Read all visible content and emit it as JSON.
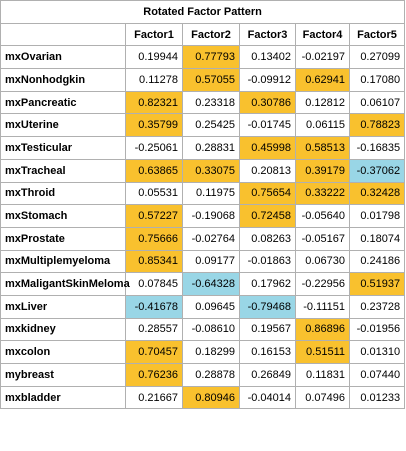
{
  "table": {
    "title": "Rotated Factor Pattern",
    "columns": [
      "Factor1",
      "Factor2",
      "Factor3",
      "Factor4",
      "Factor5"
    ],
    "highlight_colors": {
      "positive": "#f9c12e",
      "negative": "#99d6e6"
    },
    "rows": [
      {
        "label": "mxOvarian",
        "values": [
          "0.19944",
          "0.77793",
          "0.13402",
          "-0.02197",
          "0.27099"
        ],
        "hl": [
          "",
          "pos",
          "",
          "",
          ""
        ]
      },
      {
        "label": "mxNonhodgkin",
        "values": [
          "0.11278",
          "0.57055",
          "-0.09912",
          "0.62941",
          "0.17080"
        ],
        "hl": [
          "",
          "pos",
          "",
          "pos",
          ""
        ]
      },
      {
        "label": "mxPancreatic",
        "values": [
          "0.82321",
          "0.23318",
          "0.30786",
          "0.12812",
          "0.06107"
        ],
        "hl": [
          "pos",
          "",
          "pos",
          "",
          ""
        ]
      },
      {
        "label": "mxUterine",
        "values": [
          "0.35799",
          "0.25425",
          "-0.01745",
          "0.06115",
          "0.78823"
        ],
        "hl": [
          "pos",
          "",
          "",
          "",
          "pos"
        ]
      },
      {
        "label": "mxTesticular",
        "values": [
          "-0.25061",
          "0.28831",
          "0.45998",
          "0.58513",
          "-0.16835"
        ],
        "hl": [
          "",
          "",
          "pos",
          "pos",
          ""
        ]
      },
      {
        "label": "mxTracheal",
        "values": [
          "0.63865",
          "0.33075",
          "0.20813",
          "0.39179",
          "-0.37062"
        ],
        "hl": [
          "pos",
          "pos",
          "",
          "pos",
          "neg"
        ]
      },
      {
        "label": "mxThroid",
        "values": [
          "0.05531",
          "0.11975",
          "0.75654",
          "0.33222",
          "0.32428"
        ],
        "hl": [
          "",
          "",
          "pos",
          "pos",
          "pos"
        ]
      },
      {
        "label": "mxStomach",
        "values": [
          "0.57227",
          "-0.19068",
          "0.72458",
          "-0.05640",
          "0.01798"
        ],
        "hl": [
          "pos",
          "",
          "pos",
          "",
          ""
        ]
      },
      {
        "label": "mxProstate",
        "values": [
          "0.75666",
          "-0.02764",
          "0.08263",
          "-0.05167",
          "0.18074"
        ],
        "hl": [
          "pos",
          "",
          "",
          "",
          ""
        ]
      },
      {
        "label": "mxMultiplemyeloma",
        "values": [
          "0.85341",
          "0.09177",
          "-0.01863",
          "0.06730",
          "0.24186"
        ],
        "hl": [
          "pos",
          "",
          "",
          "",
          ""
        ]
      },
      {
        "label": "mxMaligantSkinMeloma",
        "values": [
          "0.07845",
          "-0.64328",
          "0.17962",
          "-0.22956",
          "0.51937"
        ],
        "hl": [
          "",
          "neg",
          "",
          "",
          "pos"
        ]
      },
      {
        "label": "mxLiver",
        "values": [
          "-0.41678",
          "0.09645",
          "-0.79468",
          "-0.11151",
          "0.23728"
        ],
        "hl": [
          "neg",
          "",
          "neg",
          "",
          ""
        ]
      },
      {
        "label": "mxkidney",
        "values": [
          "0.28557",
          "-0.08610",
          "0.19567",
          "0.86896",
          "-0.01956"
        ],
        "hl": [
          "",
          "",
          "",
          "pos",
          ""
        ]
      },
      {
        "label": "mxcolon",
        "values": [
          "0.70457",
          "0.18299",
          "0.16153",
          "0.51511",
          "0.01310"
        ],
        "hl": [
          "pos",
          "",
          "",
          "pos",
          ""
        ]
      },
      {
        "label": "mybreast",
        "values": [
          "0.76236",
          "0.28878",
          "0.26849",
          "0.11831",
          "0.07440"
        ],
        "hl": [
          "pos",
          "",
          "",
          "",
          ""
        ]
      },
      {
        "label": "mxbladder",
        "values": [
          "0.21667",
          "0.80946",
          "-0.04014",
          "0.07496",
          "0.01233"
        ],
        "hl": [
          "",
          "pos",
          "",
          "",
          ""
        ]
      }
    ]
  }
}
